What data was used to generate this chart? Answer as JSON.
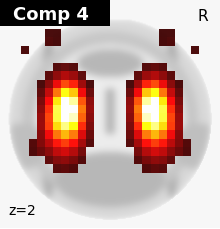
{
  "title": "Comp 4",
  "z_label": "z=2",
  "r_label": "R",
  "title_bg": "#000000",
  "title_color": "#ffffff",
  "z_color": "#000000",
  "r_color": "#000000",
  "fig_width": 2.2,
  "fig_height": 2.29,
  "dpi": 100,
  "colormap": "hot",
  "activation_grid_size": 28,
  "activation_threshold": 0.08
}
